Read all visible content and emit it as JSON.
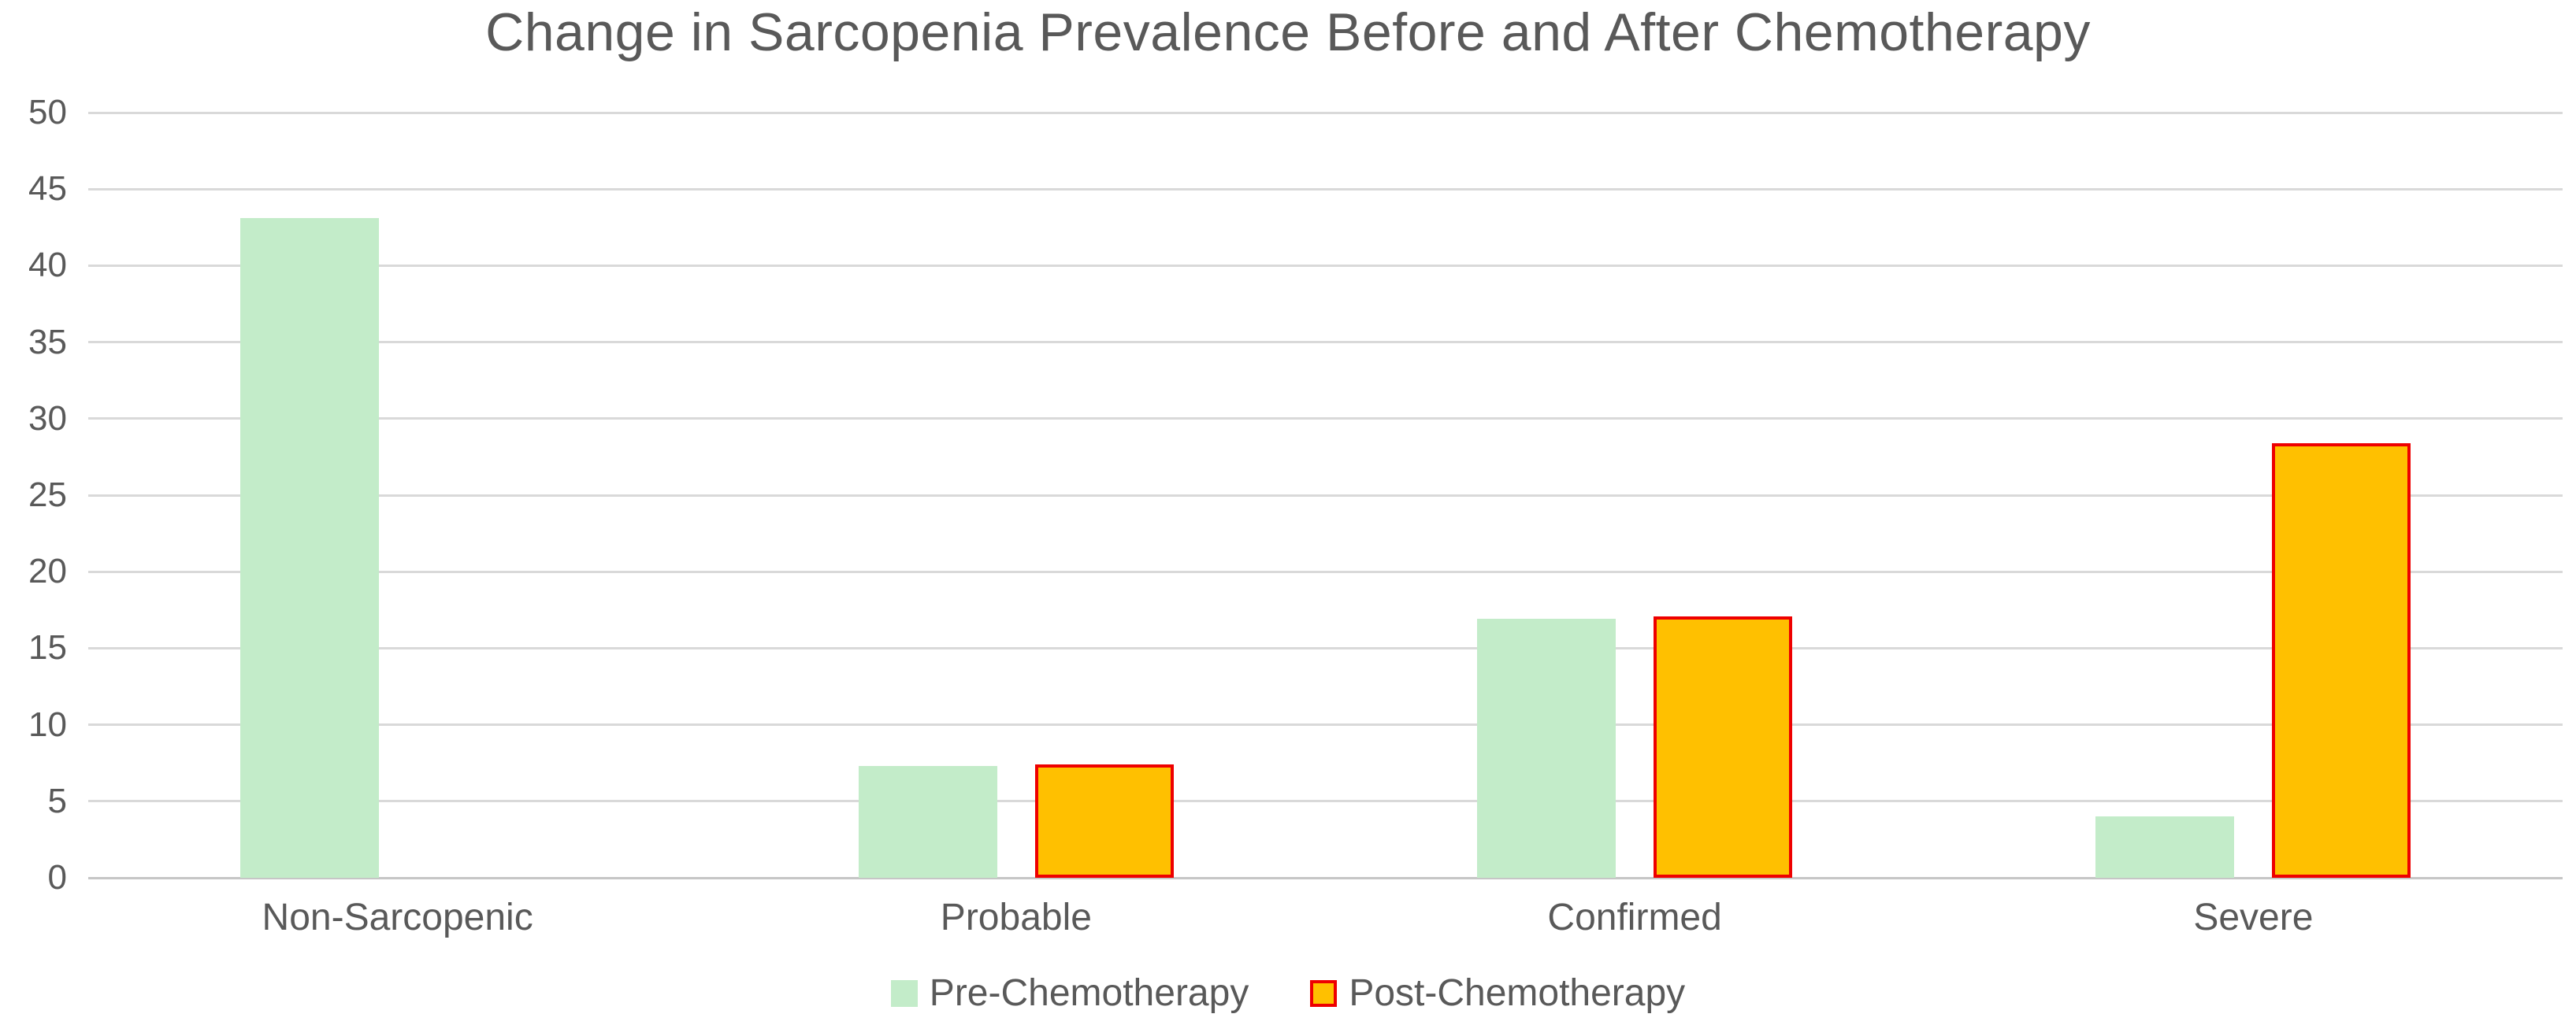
{
  "colors": {
    "background": "#FFFFFF",
    "text": "#595959",
    "gridline": "#D9D9D9",
    "axis_line": "#C6C6C6",
    "pre_fill": "#C3ECC9",
    "post_fill": "#FFC000",
    "post_border": "#EE0000"
  },
  "chart_data": {
    "type": "bar",
    "title": "Change in Sarcopenia Prevalence Before and After Chemotherapy",
    "categories": [
      "Non-Sarcopenic",
      "Probable",
      "Confirmed",
      "Severe"
    ],
    "series": [
      {
        "name": "Pre-Chemotherapy",
        "color": "#C3ECC9",
        "values": [
          43.1,
          7.3,
          16.9,
          4.0
        ]
      },
      {
        "name": "Post-Chemotherapy",
        "color": "#FFC000",
        "border": "#EE0000",
        "values": [
          0,
          7.4,
          17.1,
          28.4
        ]
      }
    ],
    "xlabel": "",
    "ylabel": "",
    "y_axis": {
      "min": 0,
      "max": 50,
      "step": 5,
      "tick_labels": [
        "0",
        "5",
        "10",
        "15",
        "20",
        "25",
        "30",
        "35",
        "40",
        "45",
        "50"
      ]
    },
    "grid": true,
    "legend_position": "bottom"
  }
}
